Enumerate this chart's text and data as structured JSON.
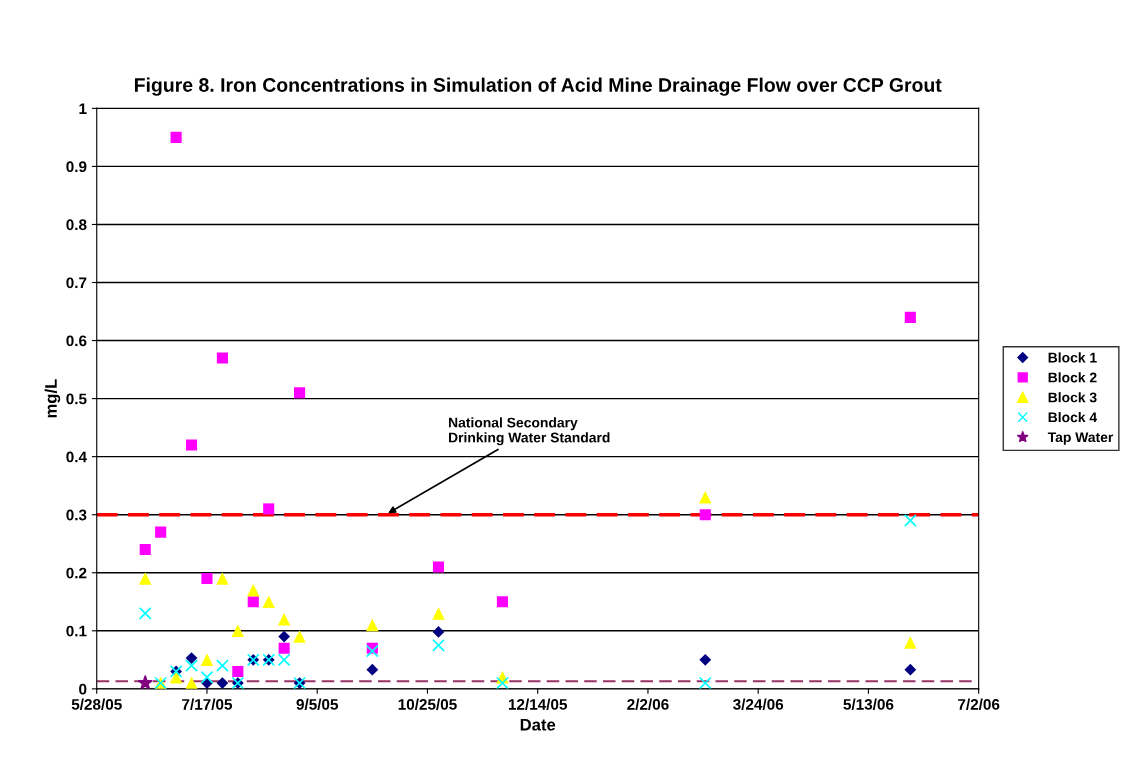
{
  "chart_data": {
    "type": "scatter",
    "title": "Figure 8. Iron Concentrations in Simulation of Acid Mine Drainage Flow over CCP Grout",
    "xlabel": "Date",
    "ylabel": "mg/L",
    "x": [
      "2005-06-19",
      "2005-06-26",
      "2005-07-03",
      "2005-07-10",
      "2005-07-17",
      "2005-07-24",
      "2005-07-31",
      "2005-08-07",
      "2005-08-14",
      "2005-08-21",
      "2005-08-28",
      "2005-09-30",
      "2005-10-30",
      "2005-11-28",
      "2006-02-28",
      "2006-06-01"
    ],
    "series": [
      {
        "name": "Block 1",
        "color": "#000080",
        "marker": "diamond",
        "values": [
          null,
          null,
          0.03,
          0.053,
          0.01,
          0.01,
          0.01,
          0.05,
          0.05,
          0.09,
          0.01,
          0.033,
          0.098,
          null,
          0.05,
          0.033
        ]
      },
      {
        "name": "Block 2",
        "color": "#ff00ff",
        "marker": "square",
        "values": [
          0.24,
          0.27,
          0.95,
          0.42,
          0.19,
          0.57,
          0.03,
          0.15,
          0.31,
          0.07,
          0.51,
          0.07,
          0.21,
          0.15,
          0.3,
          0.64
        ]
      },
      {
        "name": "Block 3",
        "color": "#ffff00",
        "marker": "triangle",
        "values": [
          0.19,
          0.01,
          0.02,
          0.01,
          0.05,
          0.19,
          0.1,
          0.17,
          0.15,
          0.12,
          0.09,
          0.11,
          0.13,
          0.02,
          0.33,
          0.08
        ]
      },
      {
        "name": "Block 4",
        "color": "#00ffff",
        "marker": "cross",
        "values": [
          0.13,
          0.01,
          0.03,
          0.04,
          0.02,
          0.04,
          0.01,
          0.05,
          0.05,
          0.05,
          0.01,
          0.065,
          0.075,
          0.01,
          0.01,
          0.29
        ]
      },
      {
        "name": "Tap Water",
        "color": "#800080",
        "marker": "star",
        "x": [
          "2005-06-19"
        ],
        "values": [
          0.01
        ]
      }
    ],
    "ref_lines": [
      {
        "axis": "y",
        "value": 0.3,
        "color": "#ff0000",
        "line_style": "dashed"
      },
      {
        "axis": "y",
        "value": 0.013,
        "color": "#993366",
        "line_style": "dashed"
      }
    ],
    "annotations": [
      {
        "text": "National Secondary\nDrinking Water Standard",
        "x": "2005-10-06",
        "y": 0.3
      }
    ],
    "xlim": [
      "2005-05-28",
      "2006-07-02"
    ],
    "xticks": [
      {
        "value": "2005-05-28",
        "label": "5/28/05"
      },
      {
        "value": "2005-07-17",
        "label": "7/17/05"
      },
      {
        "value": "2005-09-05",
        "label": "9/5/05"
      },
      {
        "value": "2005-10-25",
        "label": "10/25/05"
      },
      {
        "value": "2005-12-14",
        "label": "12/14/05"
      },
      {
        "value": "2006-02-02",
        "label": "2/2/06"
      },
      {
        "value": "2006-03-24",
        "label": "3/24/06"
      },
      {
        "value": "2006-05-13",
        "label": "5/13/06"
      },
      {
        "value": "2006-07-02",
        "label": "7/2/06"
      }
    ],
    "ylim": [
      0,
      1
    ],
    "yticks": [
      0,
      0.1,
      0.2,
      0.3,
      0.4,
      0.5,
      0.6,
      0.7,
      0.8,
      0.9,
      1
    ],
    "grid": "y",
    "legend": "right"
  }
}
